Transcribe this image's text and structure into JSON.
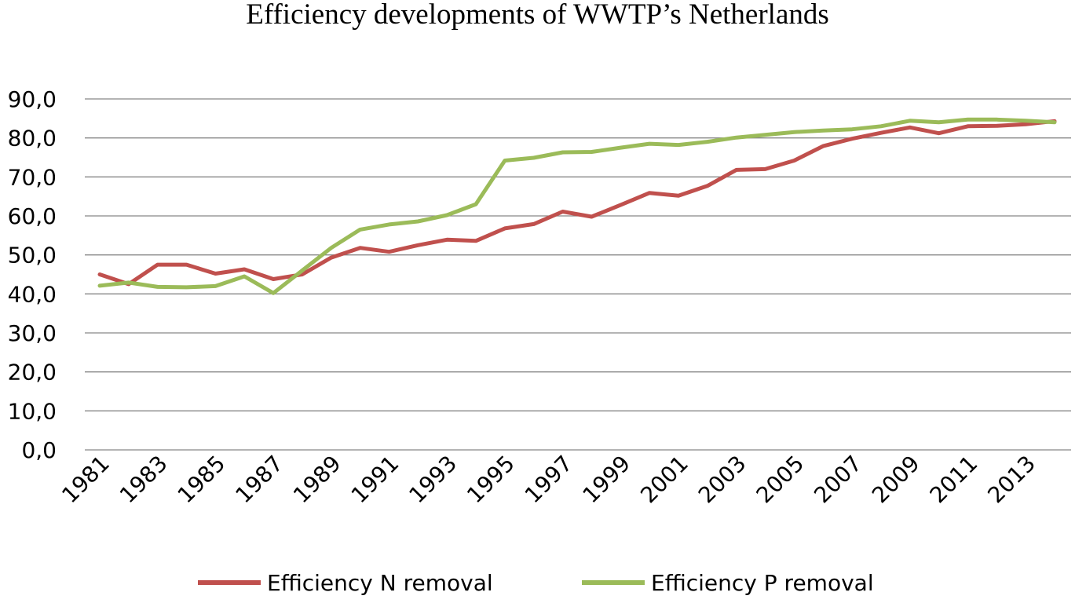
{
  "chart_data": {
    "type": "line",
    "title": "Efficiency developments of WWTP’s Netherlands",
    "xlabel": "",
    "ylabel": "",
    "ylim": [
      0,
      90
    ],
    "y_ticks": [
      "0,0",
      "10,0",
      "20,0",
      "30,0",
      "40,0",
      "50,0",
      "60,0",
      "70,0",
      "80,0",
      "90,0"
    ],
    "x": [
      1981,
      1982,
      1983,
      1984,
      1985,
      1986,
      1987,
      1988,
      1989,
      1990,
      1991,
      1992,
      1993,
      1994,
      1995,
      1996,
      1997,
      1998,
      1999,
      2000,
      2001,
      2002,
      2003,
      2004,
      2005,
      2006,
      2007,
      2008,
      2009,
      2010,
      2011,
      2012,
      2013,
      2014
    ],
    "x_tick_labels": [
      "1981",
      "1983",
      "1985",
      "1987",
      "1989",
      "1991",
      "1993",
      "1995",
      "1997",
      "1999",
      "2001",
      "2003",
      "2005",
      "2007",
      "2009",
      "2011",
      "2013"
    ],
    "grid": true,
    "legend_position": "bottom",
    "series": [
      {
        "name": "Efficiency N removal",
        "color": "#C0504D",
        "values": [
          45.0,
          42.5,
          47.5,
          47.5,
          45.2,
          46.3,
          43.8,
          45.0,
          49.3,
          51.8,
          50.8,
          52.5,
          53.9,
          53.6,
          56.8,
          57.9,
          61.1,
          59.8,
          62.8,
          65.9,
          65.2,
          67.7,
          71.8,
          72.0,
          74.2,
          77.9,
          79.8,
          81.3,
          82.7,
          81.2,
          83.0,
          83.1,
          83.5,
          84.3
        ]
      },
      {
        "name": "Efficiency P removal",
        "color": "#9BBB59",
        "values": [
          42.1,
          42.9,
          41.8,
          41.7,
          42.0,
          44.5,
          40.2,
          46.0,
          51.8,
          56.5,
          57.8,
          58.6,
          60.2,
          63.0,
          74.2,
          74.9,
          76.3,
          76.4,
          77.5,
          78.5,
          78.2,
          79.0,
          80.1,
          80.8,
          81.5,
          81.9,
          82.2,
          83.0,
          84.4,
          84.0,
          84.7,
          84.7,
          84.4,
          84.0
        ]
      }
    ]
  }
}
